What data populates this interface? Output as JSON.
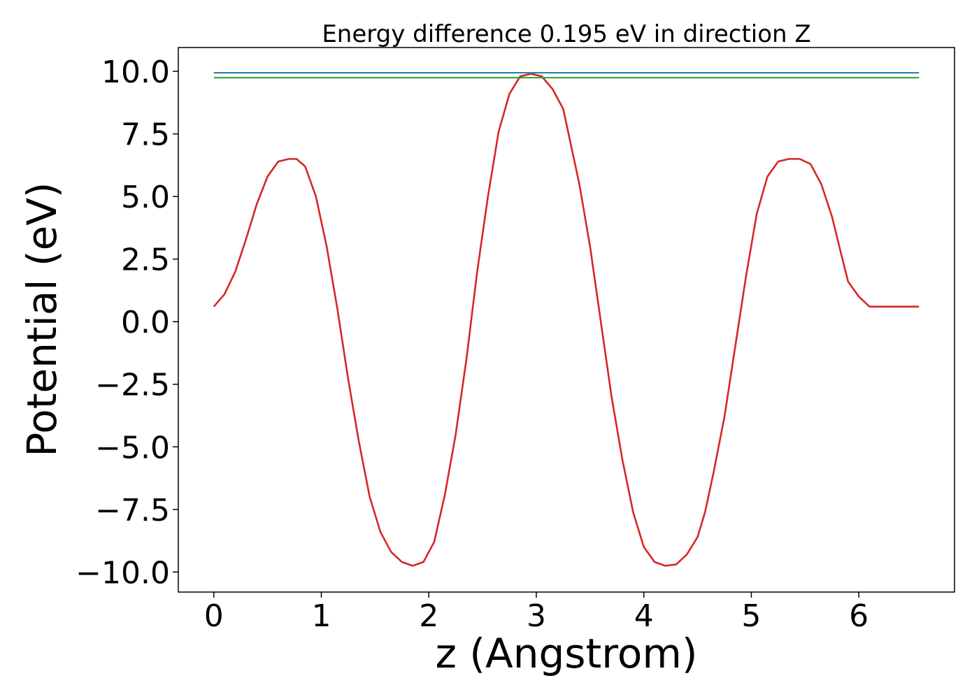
{
  "chart_data": {
    "type": "line",
    "title": "Energy difference 0.195 eV in direction Z",
    "xlabel": "z (Angstrom)",
    "ylabel": "Potential (eV)",
    "xlim": [
      -0.33,
      6.89
    ],
    "ylim": [
      -10.8,
      10.95
    ],
    "x_ticks": [
      0,
      1,
      2,
      3,
      4,
      5,
      6
    ],
    "x_tick_labels": [
      "0",
      "1",
      "2",
      "3",
      "4",
      "5",
      "6"
    ],
    "y_ticks": [
      10.0,
      7.5,
      5.0,
      2.5,
      0.0,
      -2.5,
      -5.0,
      -7.5,
      -10.0
    ],
    "y_tick_labels": [
      "10.0",
      "7.5",
      "5.0",
      "2.5",
      "0.0",
      "−2.5",
      "−5.0",
      "−7.5",
      "−10.0"
    ],
    "grid": false,
    "legend": "none",
    "series": [
      {
        "color": "#d62728",
        "x": [
          0.0,
          0.1,
          0.2,
          0.3,
          0.4,
          0.5,
          0.6,
          0.7,
          0.77,
          0.85,
          0.95,
          1.05,
          1.15,
          1.25,
          1.35,
          1.45,
          1.55,
          1.65,
          1.75,
          1.85,
          1.95,
          2.05,
          2.15,
          2.25,
          2.35,
          2.45,
          2.55,
          2.65,
          2.75,
          2.85,
          2.95,
          3.05,
          3.15,
          3.25,
          3.3,
          3.4,
          3.5,
          3.6,
          3.7,
          3.8,
          3.9,
          4.0,
          4.1,
          4.2,
          4.3,
          4.4,
          4.5,
          4.57,
          4.65,
          4.75,
          4.85,
          4.95,
          5.05,
          5.15,
          5.25,
          5.35,
          5.45,
          5.55,
          5.65,
          5.75,
          5.83,
          5.9,
          6.0,
          6.1,
          6.2,
          6.3,
          6.4,
          6.5,
          6.56
        ],
        "y": [
          0.6,
          1.1,
          2.0,
          3.3,
          4.7,
          5.8,
          6.4,
          6.5,
          6.5,
          6.2,
          5.0,
          3.0,
          0.5,
          -2.3,
          -4.8,
          -7.0,
          -8.4,
          -9.2,
          -9.6,
          -9.75,
          -9.6,
          -8.8,
          -6.9,
          -4.5,
          -1.5,
          2.0,
          5.0,
          7.6,
          9.1,
          9.8,
          9.9,
          9.8,
          9.3,
          8.5,
          7.5,
          5.5,
          3.0,
          0.0,
          -3.0,
          -5.5,
          -7.6,
          -9.0,
          -9.6,
          -9.75,
          -9.7,
          -9.3,
          -8.6,
          -7.6,
          -6.0,
          -3.8,
          -1.0,
          1.8,
          4.3,
          5.8,
          6.4,
          6.5,
          6.5,
          6.3,
          5.5,
          4.2,
          2.8,
          1.6,
          1.0,
          0.6,
          0.6,
          0.6,
          0.6,
          0.6,
          0.6
        ]
      },
      {
        "color": "#1f77b4",
        "x": [
          0.0,
          6.56
        ],
        "y": [
          9.94,
          9.94
        ]
      },
      {
        "color": "#2ca02c",
        "x": [
          0.0,
          6.56
        ],
        "y": [
          9.745,
          9.745
        ]
      }
    ]
  }
}
